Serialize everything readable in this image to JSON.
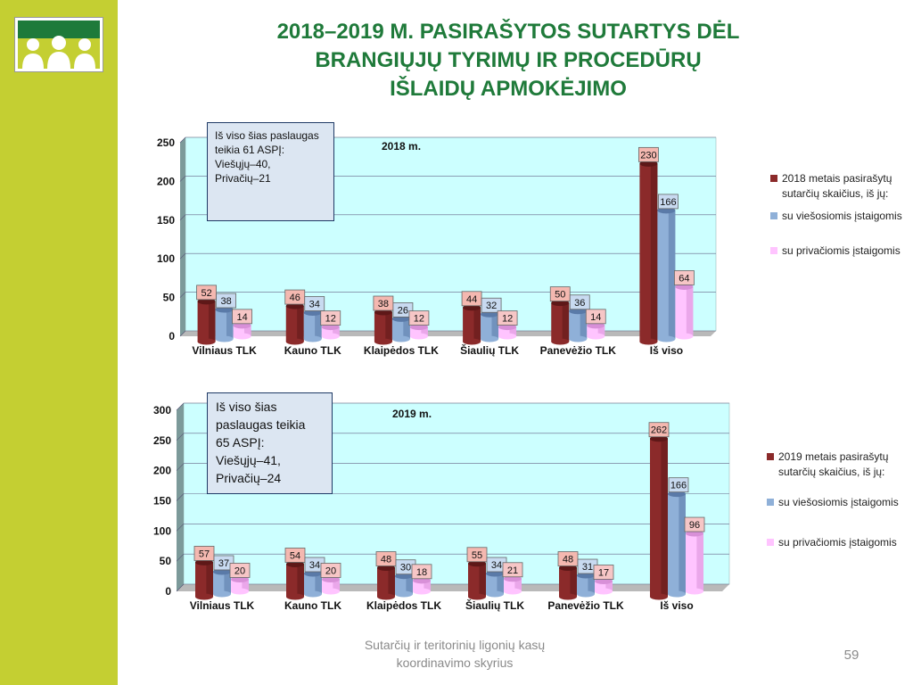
{
  "title": [
    "2018–2019 M. PASIRAŠYTOS SUTARTYS DĖL",
    "BRANGIŲJŲ TYRIMŲ IR PROCEDŪRŲ",
    "IŠLAIDŲ APMOKĖJIMO"
  ],
  "footer": [
    "Sutarčių ir teritorinių ligonių kasų",
    "koordinavimo skyrius"
  ],
  "page_number": "59",
  "colors": {
    "sidebar": "#c4cf32",
    "title": "#1f7a3a",
    "plot_bg": "#ccffff",
    "total": "#8b2a2a",
    "public": "#8fb0d8",
    "private": "#ffc4ff"
  },
  "chart_data": [
    {
      "type": "bar",
      "title": "2018 m.",
      "categories": [
        "Vilniaus TLK",
        "Kauno TLK",
        "Klaipėdos TLK",
        "Šiaulių TLK",
        "Panevėžio TLK",
        "Iš viso"
      ],
      "series": [
        {
          "name": "2018 metais pasirašytų sutarčių skaičius, iš jų:",
          "values": [
            52,
            46,
            38,
            44,
            50,
            230
          ]
        },
        {
          "name": "su viešosiomis įstaigomis",
          "values": [
            38,
            34,
            26,
            32,
            36,
            166
          ]
        },
        {
          "name": "su privačiomis įstaigomis",
          "values": [
            14,
            12,
            12,
            12,
            14,
            64
          ]
        }
      ],
      "ylim": [
        0,
        250
      ],
      "yticks": [
        0,
        50,
        100,
        150,
        200,
        250
      ],
      "legend": "right",
      "note": [
        "Iš viso šias paslaugas",
        "teikia 61 ASPĮ:",
        "Viešųjų–40,",
        "Privačių–21"
      ]
    },
    {
      "type": "bar",
      "title": "2019 m.",
      "categories": [
        "Vilniaus TLK",
        "Kauno TLK",
        "Klaipėdos TLK",
        "Šiaulių TLK",
        "Panevėžio TLK",
        "Iš viso"
      ],
      "series": [
        {
          "name": "2019 metais pasirašytų sutarčių skaičius, iš jų:",
          "values": [
            57,
            54,
            48,
            55,
            48,
            262
          ]
        },
        {
          "name": "su viešosiomis įstaigomis",
          "values": [
            37,
            34,
            30,
            34,
            31,
            166
          ]
        },
        {
          "name": "su privačiomis įstaigomis",
          "values": [
            20,
            20,
            18,
            21,
            17,
            96
          ]
        }
      ],
      "ylim": [
        0,
        300
      ],
      "yticks": [
        0,
        50,
        100,
        150,
        200,
        250,
        300
      ],
      "legend": "right",
      "note": [
        "Iš viso šias",
        "paslaugas teikia",
        "65 ASPĮ:",
        "Viešųjų–41,",
        "Privačių–24"
      ]
    }
  ]
}
